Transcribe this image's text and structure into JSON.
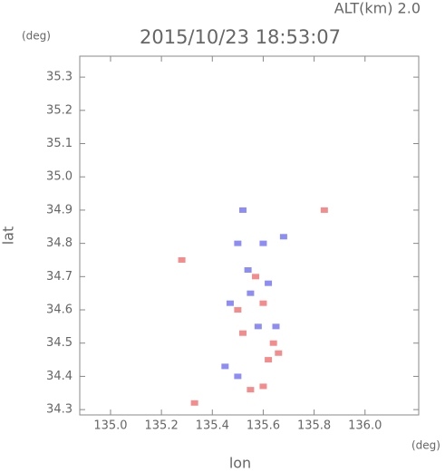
{
  "chart_data": {
    "type": "scatter",
    "title": "2015/10/23 18:53:07",
    "subtitle": "ALT(km) 2.0",
    "x_label": "lon",
    "y_label": "lat",
    "x_unit": "(deg)",
    "y_unit": "(deg)",
    "xlim": [
      134.879,
      136.211
    ],
    "ylim": [
      34.284,
      35.363
    ],
    "xticks": [
      {
        "value": 135.0,
        "label": "135.0"
      },
      135.2,
      135.4,
      135.6,
      135.8,
      {
        "value": 136.0,
        "label": "136.0"
      }
    ],
    "yticks": [
      34.3,
      34.4,
      34.5,
      34.6,
      34.7,
      34.8,
      34.9,
      {
        "value": 35.0,
        "label": "35.0"
      },
      35.1,
      35.2,
      35.3
    ],
    "series": [
      {
        "color": "#f07070",
        "x": [
          135.28,
          135.84,
          135.33,
          135.55,
          135.6,
          135.62,
          135.6,
          135.5,
          135.66,
          135.57,
          135.64,
          135.52
        ],
        "values": [
          34.75,
          34.9,
          34.32,
          34.36,
          34.37,
          34.45,
          34.62,
          34.6,
          34.47,
          34.7,
          34.5,
          34.53
        ]
      },
      {
        "color": "#7070f0",
        "x": [
          135.52,
          135.5,
          135.6,
          135.55,
          135.5,
          135.45,
          135.58,
          135.65,
          135.47,
          135.62,
          135.54,
          135.68
        ],
        "values": [
          34.9,
          34.8,
          34.8,
          34.65,
          34.4,
          34.43,
          34.55,
          34.55,
          34.62,
          34.68,
          34.72,
          34.82
        ]
      }
    ]
  }
}
